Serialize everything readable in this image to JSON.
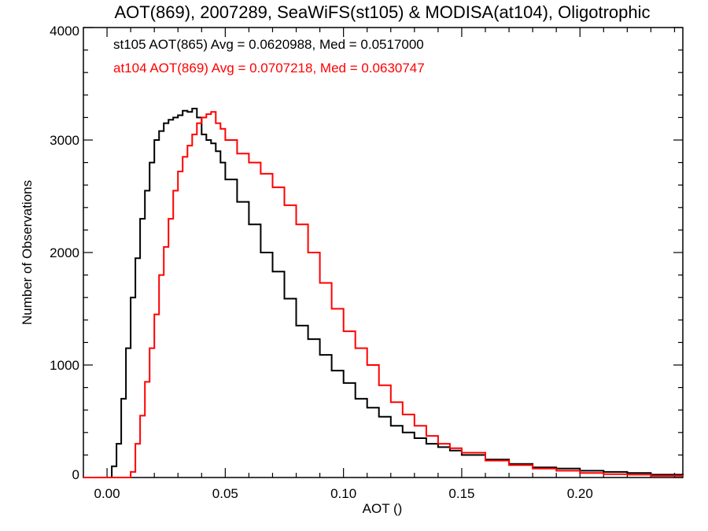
{
  "chart_data": {
    "type": "line",
    "step": true,
    "title": "AOT(869), 2007289, SeaWiFS(st105) & MODISA(at104), Oligotrophic",
    "xlabel": "AOT ()",
    "ylabel": "Number of Observations",
    "xlim": [
      -0.01,
      0.2435
    ],
    "ylim": [
      0,
      4000
    ],
    "x_ticks": [
      0.0,
      0.05,
      0.1,
      0.15,
      0.2
    ],
    "x_tick_labels": [
      "0.00",
      "0.05",
      "0.10",
      "0.15",
      "0.20"
    ],
    "y_ticks": [
      0,
      1000,
      2000,
      3000,
      4000
    ],
    "y_tick_labels": [
      "0",
      "1000",
      "2000",
      "3000",
      "4000"
    ],
    "grid": false,
    "legend": "top-left",
    "series": [
      {
        "name": "st105 AOT(865) Avg = 0.0620988, Med = 0.0517000",
        "color": "#000000",
        "x": [
          -0.01,
          0.002,
          0.004,
          0.006,
          0.008,
          0.01,
          0.012,
          0.014,
          0.016,
          0.018,
          0.02,
          0.022,
          0.024,
          0.026,
          0.028,
          0.03,
          0.032,
          0.034,
          0.036,
          0.038,
          0.04,
          0.042,
          0.044,
          0.046,
          0.048,
          0.05,
          0.055,
          0.06,
          0.065,
          0.07,
          0.075,
          0.08,
          0.085,
          0.09,
          0.095,
          0.1,
          0.105,
          0.11,
          0.115,
          0.12,
          0.125,
          0.13,
          0.135,
          0.14,
          0.145,
          0.15,
          0.16,
          0.17,
          0.18,
          0.19,
          0.2,
          0.21,
          0.22,
          0.23,
          0.2435
        ],
        "y": [
          0,
          100,
          300,
          700,
          1150,
          1600,
          1950,
          2300,
          2550,
          2800,
          3000,
          3080,
          3150,
          3180,
          3200,
          3220,
          3260,
          3250,
          3280,
          3200,
          3050,
          3000,
          2970,
          2900,
          2800,
          2650,
          2450,
          2250,
          2000,
          1830,
          1590,
          1350,
          1230,
          1090,
          950,
          840,
          700,
          620,
          540,
          460,
          400,
          350,
          300,
          270,
          240,
          200,
          160,
          120,
          90,
          80,
          60,
          50,
          40,
          25,
          15
        ]
      },
      {
        "name": "at104 AOT(869) Avg = 0.0707218, Med = 0.0630747",
        "color": "#ff0000",
        "x": [
          -0.01,
          0.01,
          0.012,
          0.014,
          0.016,
          0.018,
          0.02,
          0.022,
          0.024,
          0.026,
          0.028,
          0.03,
          0.032,
          0.034,
          0.036,
          0.038,
          0.04,
          0.042,
          0.044,
          0.046,
          0.048,
          0.05,
          0.055,
          0.06,
          0.065,
          0.07,
          0.075,
          0.08,
          0.085,
          0.09,
          0.095,
          0.1,
          0.105,
          0.11,
          0.115,
          0.12,
          0.125,
          0.13,
          0.135,
          0.14,
          0.145,
          0.15,
          0.16,
          0.17,
          0.18,
          0.19,
          0.2,
          0.21,
          0.22,
          0.23,
          0.2435
        ],
        "y": [
          0,
          50,
          300,
          550,
          850,
          1150,
          1450,
          1800,
          2050,
          2300,
          2550,
          2720,
          2850,
          2950,
          3050,
          3150,
          3200,
          3230,
          3250,
          3150,
          3100,
          3000,
          2880,
          2800,
          2700,
          2580,
          2420,
          2250,
          2000,
          1730,
          1500,
          1300,
          1150,
          1000,
          820,
          670,
          560,
          460,
          370,
          300,
          260,
          220,
          150,
          110,
          80,
          60,
          40,
          30,
          25,
          15,
          10
        ]
      }
    ]
  }
}
